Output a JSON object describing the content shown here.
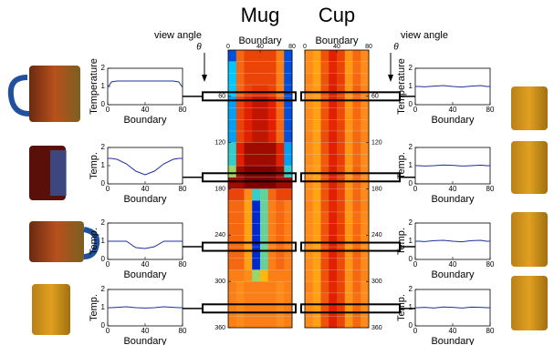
{
  "chart_data": [
    {
      "type": "heatmap",
      "title": "Mug",
      "xlabel": "Boundary",
      "xlim": [
        0,
        80
      ],
      "xticks": [
        0,
        40,
        80
      ],
      "ylim": [
        0,
        360
      ],
      "yticks": [
        60,
        120,
        180,
        240,
        300,
        360
      ],
      "annotation": "view angle",
      "symbol": "θ",
      "highlights": [
        60,
        165,
        255,
        335
      ],
      "values": [
        [
          0.1,
          0.75,
          0.8,
          0.8,
          0.8,
          0.8,
          0.72,
          0.1
        ],
        [
          0.25,
          0.75,
          0.8,
          0.8,
          0.8,
          0.8,
          0.72,
          0.1
        ],
        [
          0.25,
          0.75,
          0.8,
          0.8,
          0.8,
          0.8,
          0.72,
          0.1
        ],
        [
          0.25,
          0.75,
          0.8,
          0.82,
          0.82,
          0.8,
          0.72,
          0.1
        ],
        [
          0.2,
          0.8,
          0.85,
          0.9,
          0.9,
          0.85,
          0.75,
          0.1
        ],
        [
          0.2,
          0.8,
          0.85,
          0.9,
          0.9,
          0.85,
          0.75,
          0.1
        ],
        [
          0.2,
          0.8,
          0.85,
          0.9,
          0.9,
          0.85,
          0.75,
          0.1
        ],
        [
          0.2,
          0.8,
          0.85,
          0.9,
          0.9,
          0.85,
          0.75,
          0.1
        ],
        [
          0.3,
          0.85,
          0.95,
          0.95,
          0.95,
          0.95,
          0.85,
          0.2
        ],
        [
          0.3,
          0.85,
          0.95,
          0.95,
          0.95,
          0.95,
          0.85,
          0.2
        ],
        [
          0.4,
          0.95,
          1,
          1,
          1,
          1,
          0.95,
          0.3
        ],
        [
          0.95,
          0.95,
          1,
          1,
          1,
          1,
          0.95,
          0.95
        ],
        [
          0.8,
          0.8,
          0.7,
          0.3,
          0.35,
          0.75,
          0.8,
          0.8
        ],
        [
          0.75,
          0.75,
          0.65,
          0.05,
          0.35,
          0.72,
          0.75,
          0.72
        ],
        [
          0.75,
          0.75,
          0.65,
          0.05,
          0.35,
          0.72,
          0.75,
          0.72
        ],
        [
          0.75,
          0.75,
          0.65,
          0.05,
          0.35,
          0.72,
          0.75,
          0.72
        ],
        [
          0.75,
          0.75,
          0.65,
          0.05,
          0.35,
          0.72,
          0.75,
          0.72
        ],
        [
          0.75,
          0.75,
          0.65,
          0.05,
          0.35,
          0.72,
          0.75,
          0.72
        ],
        [
          0.75,
          0.75,
          0.65,
          0.05,
          0.35,
          0.72,
          0.75,
          0.72
        ],
        [
          0.72,
          0.72,
          0.7,
          0.4,
          0.6,
          0.72,
          0.72,
          0.72
        ],
        [
          0.72,
          0.7,
          0.72,
          0.72,
          0.72,
          0.72,
          0.7,
          0.72
        ],
        [
          0.72,
          0.7,
          0.72,
          0.72,
          0.72,
          0.72,
          0.7,
          0.72
        ],
        [
          0.72,
          0.7,
          0.72,
          0.72,
          0.72,
          0.72,
          0.7,
          0.72
        ],
        [
          0.72,
          0.7,
          0.72,
          0.72,
          0.72,
          0.72,
          0.7,
          0.72
        ]
      ]
    },
    {
      "type": "heatmap",
      "title": "Cup",
      "xlabel": "Boundary",
      "xlim": [
        0,
        80
      ],
      "xticks": [
        0,
        40,
        80
      ],
      "ylim": [
        0,
        360
      ],
      "yticks": [
        60,
        120,
        180,
        240,
        300,
        360
      ],
      "annotation": "view angle",
      "symbol": "θ",
      "highlights": [
        60,
        165,
        255,
        335
      ],
      "values": [
        [
          0.7,
          0.65,
          0.78,
          0.85,
          0.8,
          0.68,
          0.75,
          0.7
        ],
        [
          0.7,
          0.64,
          0.77,
          0.84,
          0.8,
          0.67,
          0.74,
          0.7
        ],
        [
          0.71,
          0.65,
          0.78,
          0.85,
          0.81,
          0.68,
          0.75,
          0.7
        ],
        [
          0.7,
          0.66,
          0.78,
          0.86,
          0.8,
          0.68,
          0.76,
          0.71
        ],
        [
          0.69,
          0.65,
          0.77,
          0.85,
          0.8,
          0.67,
          0.75,
          0.7
        ],
        [
          0.7,
          0.65,
          0.78,
          0.85,
          0.79,
          0.68,
          0.75,
          0.7
        ],
        [
          0.7,
          0.64,
          0.78,
          0.84,
          0.8,
          0.68,
          0.74,
          0.7
        ],
        [
          0.71,
          0.65,
          0.79,
          0.85,
          0.8,
          0.69,
          0.75,
          0.71
        ],
        [
          0.7,
          0.65,
          0.78,
          0.85,
          0.8,
          0.68,
          0.75,
          0.7
        ],
        [
          0.7,
          0.66,
          0.77,
          0.85,
          0.81,
          0.68,
          0.75,
          0.7
        ],
        [
          0.69,
          0.65,
          0.78,
          0.86,
          0.8,
          0.67,
          0.76,
          0.7
        ],
        [
          0.7,
          0.65,
          0.78,
          0.85,
          0.8,
          0.68,
          0.75,
          0.7
        ],
        [
          0.7,
          0.64,
          0.78,
          0.85,
          0.8,
          0.68,
          0.75,
          0.7
        ],
        [
          0.71,
          0.65,
          0.78,
          0.84,
          0.8,
          0.68,
          0.75,
          0.71
        ],
        [
          0.7,
          0.65,
          0.77,
          0.85,
          0.8,
          0.67,
          0.74,
          0.7
        ],
        [
          0.7,
          0.66,
          0.78,
          0.85,
          0.81,
          0.68,
          0.75,
          0.7
        ],
        [
          0.7,
          0.65,
          0.78,
          0.86,
          0.8,
          0.68,
          0.75,
          0.7
        ],
        [
          0.69,
          0.65,
          0.78,
          0.85,
          0.8,
          0.68,
          0.76,
          0.7
        ],
        [
          0.7,
          0.65,
          0.79,
          0.85,
          0.79,
          0.68,
          0.75,
          0.7
        ],
        [
          0.7,
          0.64,
          0.78,
          0.85,
          0.8,
          0.69,
          0.75,
          0.71
        ],
        [
          0.71,
          0.65,
          0.78,
          0.84,
          0.8,
          0.68,
          0.75,
          0.7
        ],
        [
          0.7,
          0.65,
          0.77,
          0.85,
          0.8,
          0.68,
          0.74,
          0.7
        ],
        [
          0.7,
          0.66,
          0.78,
          0.85,
          0.81,
          0.67,
          0.75,
          0.7
        ],
        [
          0.7,
          0.65,
          0.78,
          0.85,
          0.8,
          0.68,
          0.75,
          0.7
        ]
      ]
    },
    {
      "type": "line",
      "xlabel": "Boundary",
      "ylabel": "Temperature",
      "xlim": [
        0,
        80
      ],
      "ylim": [
        0,
        2
      ],
      "xticks": [
        0,
        40,
        80
      ],
      "yticks": [
        0,
        1,
        2
      ],
      "color": "#1f2f9f",
      "x": [
        0,
        4,
        10,
        20,
        30,
        40,
        50,
        60,
        70,
        76,
        80
      ],
      "values": [
        0.95,
        1.25,
        1.3,
        1.3,
        1.3,
        1.3,
        1.3,
        1.3,
        1.3,
        1.25,
        0.95
      ]
    },
    {
      "type": "line",
      "xlabel": "Boundary",
      "ylabel": "Temp.",
      "xlim": [
        0,
        80
      ],
      "ylim": [
        0,
        2
      ],
      "xticks": [
        0,
        40,
        80
      ],
      "yticks": [
        0,
        1,
        2
      ],
      "color": "#1f2f9f",
      "x": [
        0,
        4,
        10,
        20,
        30,
        40,
        50,
        60,
        70,
        76,
        80
      ],
      "values": [
        1.4,
        1.4,
        1.35,
        1.1,
        0.7,
        0.5,
        0.7,
        1.1,
        1.35,
        1.4,
        1.4
      ]
    },
    {
      "type": "line",
      "xlabel": "Boundary",
      "ylabel": "Temp.",
      "xlim": [
        0,
        80
      ],
      "ylim": [
        0,
        2
      ],
      "xticks": [
        0,
        40,
        80
      ],
      "yticks": [
        0,
        1,
        2
      ],
      "color": "#1f2f9f",
      "x": [
        0,
        4,
        10,
        20,
        30,
        40,
        50,
        60,
        70,
        76,
        80
      ],
      "values": [
        1,
        1,
        1,
        1,
        0.65,
        0.6,
        0.7,
        1,
        1,
        1,
        1
      ]
    },
    {
      "type": "line",
      "xlabel": "Boundary",
      "ylabel": "Temp.",
      "xlim": [
        0,
        80
      ],
      "ylim": [
        0,
        2
      ],
      "xticks": [
        0,
        40,
        80
      ],
      "yticks": [
        0,
        1,
        2
      ],
      "color": "#1f2f9f",
      "x": [
        0,
        4,
        10,
        20,
        30,
        40,
        50,
        60,
        70,
        76,
        80
      ],
      "values": [
        1,
        1,
        1.02,
        1.05,
        1,
        0.98,
        1,
        1.05,
        1.02,
        1,
        1
      ]
    },
    {
      "type": "line",
      "xlabel": "Boundary",
      "ylabel": "Temperature",
      "xlim": [
        0,
        80
      ],
      "ylim": [
        0,
        2
      ],
      "xticks": [
        0,
        40,
        80
      ],
      "yticks": [
        0,
        1,
        2
      ],
      "color": "#1f2f9f",
      "x": [
        0,
        4,
        10,
        20,
        30,
        40,
        50,
        60,
        70,
        76,
        80
      ],
      "values": [
        1,
        1,
        0.98,
        1.02,
        1.05,
        1,
        0.97,
        1.02,
        1.05,
        1,
        1
      ]
    },
    {
      "type": "line",
      "xlabel": "Boundary",
      "ylabel": "Temp.",
      "xlim": [
        0,
        80
      ],
      "ylim": [
        0,
        2
      ],
      "xticks": [
        0,
        40,
        80
      ],
      "yticks": [
        0,
        1,
        2
      ],
      "color": "#1f2f9f",
      "x": [
        0,
        4,
        10,
        20,
        30,
        40,
        50,
        60,
        70,
        76,
        80
      ],
      "values": [
        1,
        1,
        0.98,
        1,
        1.04,
        1.02,
        0.98,
        1,
        1.03,
        1,
        1
      ]
    },
    {
      "type": "line",
      "xlabel": "Boundary",
      "ylabel": "Temp.",
      "xlim": [
        0,
        80
      ],
      "ylim": [
        0,
        2
      ],
      "xticks": [
        0,
        40,
        80
      ],
      "yticks": [
        0,
        1,
        2
      ],
      "color": "#1f2f9f",
      "x": [
        0,
        4,
        10,
        20,
        30,
        40,
        50,
        60,
        70,
        76,
        80
      ],
      "values": [
        1,
        1,
        0.98,
        1.03,
        1.05,
        1,
        0.97,
        1.03,
        1.05,
        1,
        1
      ]
    },
    {
      "type": "line",
      "xlabel": "Boundary",
      "ylabel": "Temp.",
      "xlim": [
        0,
        80
      ],
      "ylim": [
        0,
        2
      ],
      "xticks": [
        0,
        40,
        80
      ],
      "yticks": [
        0,
        1,
        2
      ],
      "color": "#1f2f9f",
      "x": [
        0,
        4,
        10,
        20,
        30,
        40,
        50,
        60,
        70,
        76,
        80
      ],
      "values": [
        1,
        1,
        1.02,
        0.98,
        1.04,
        1.02,
        0.98,
        1.03,
        1.02,
        1,
        1
      ]
    }
  ]
}
